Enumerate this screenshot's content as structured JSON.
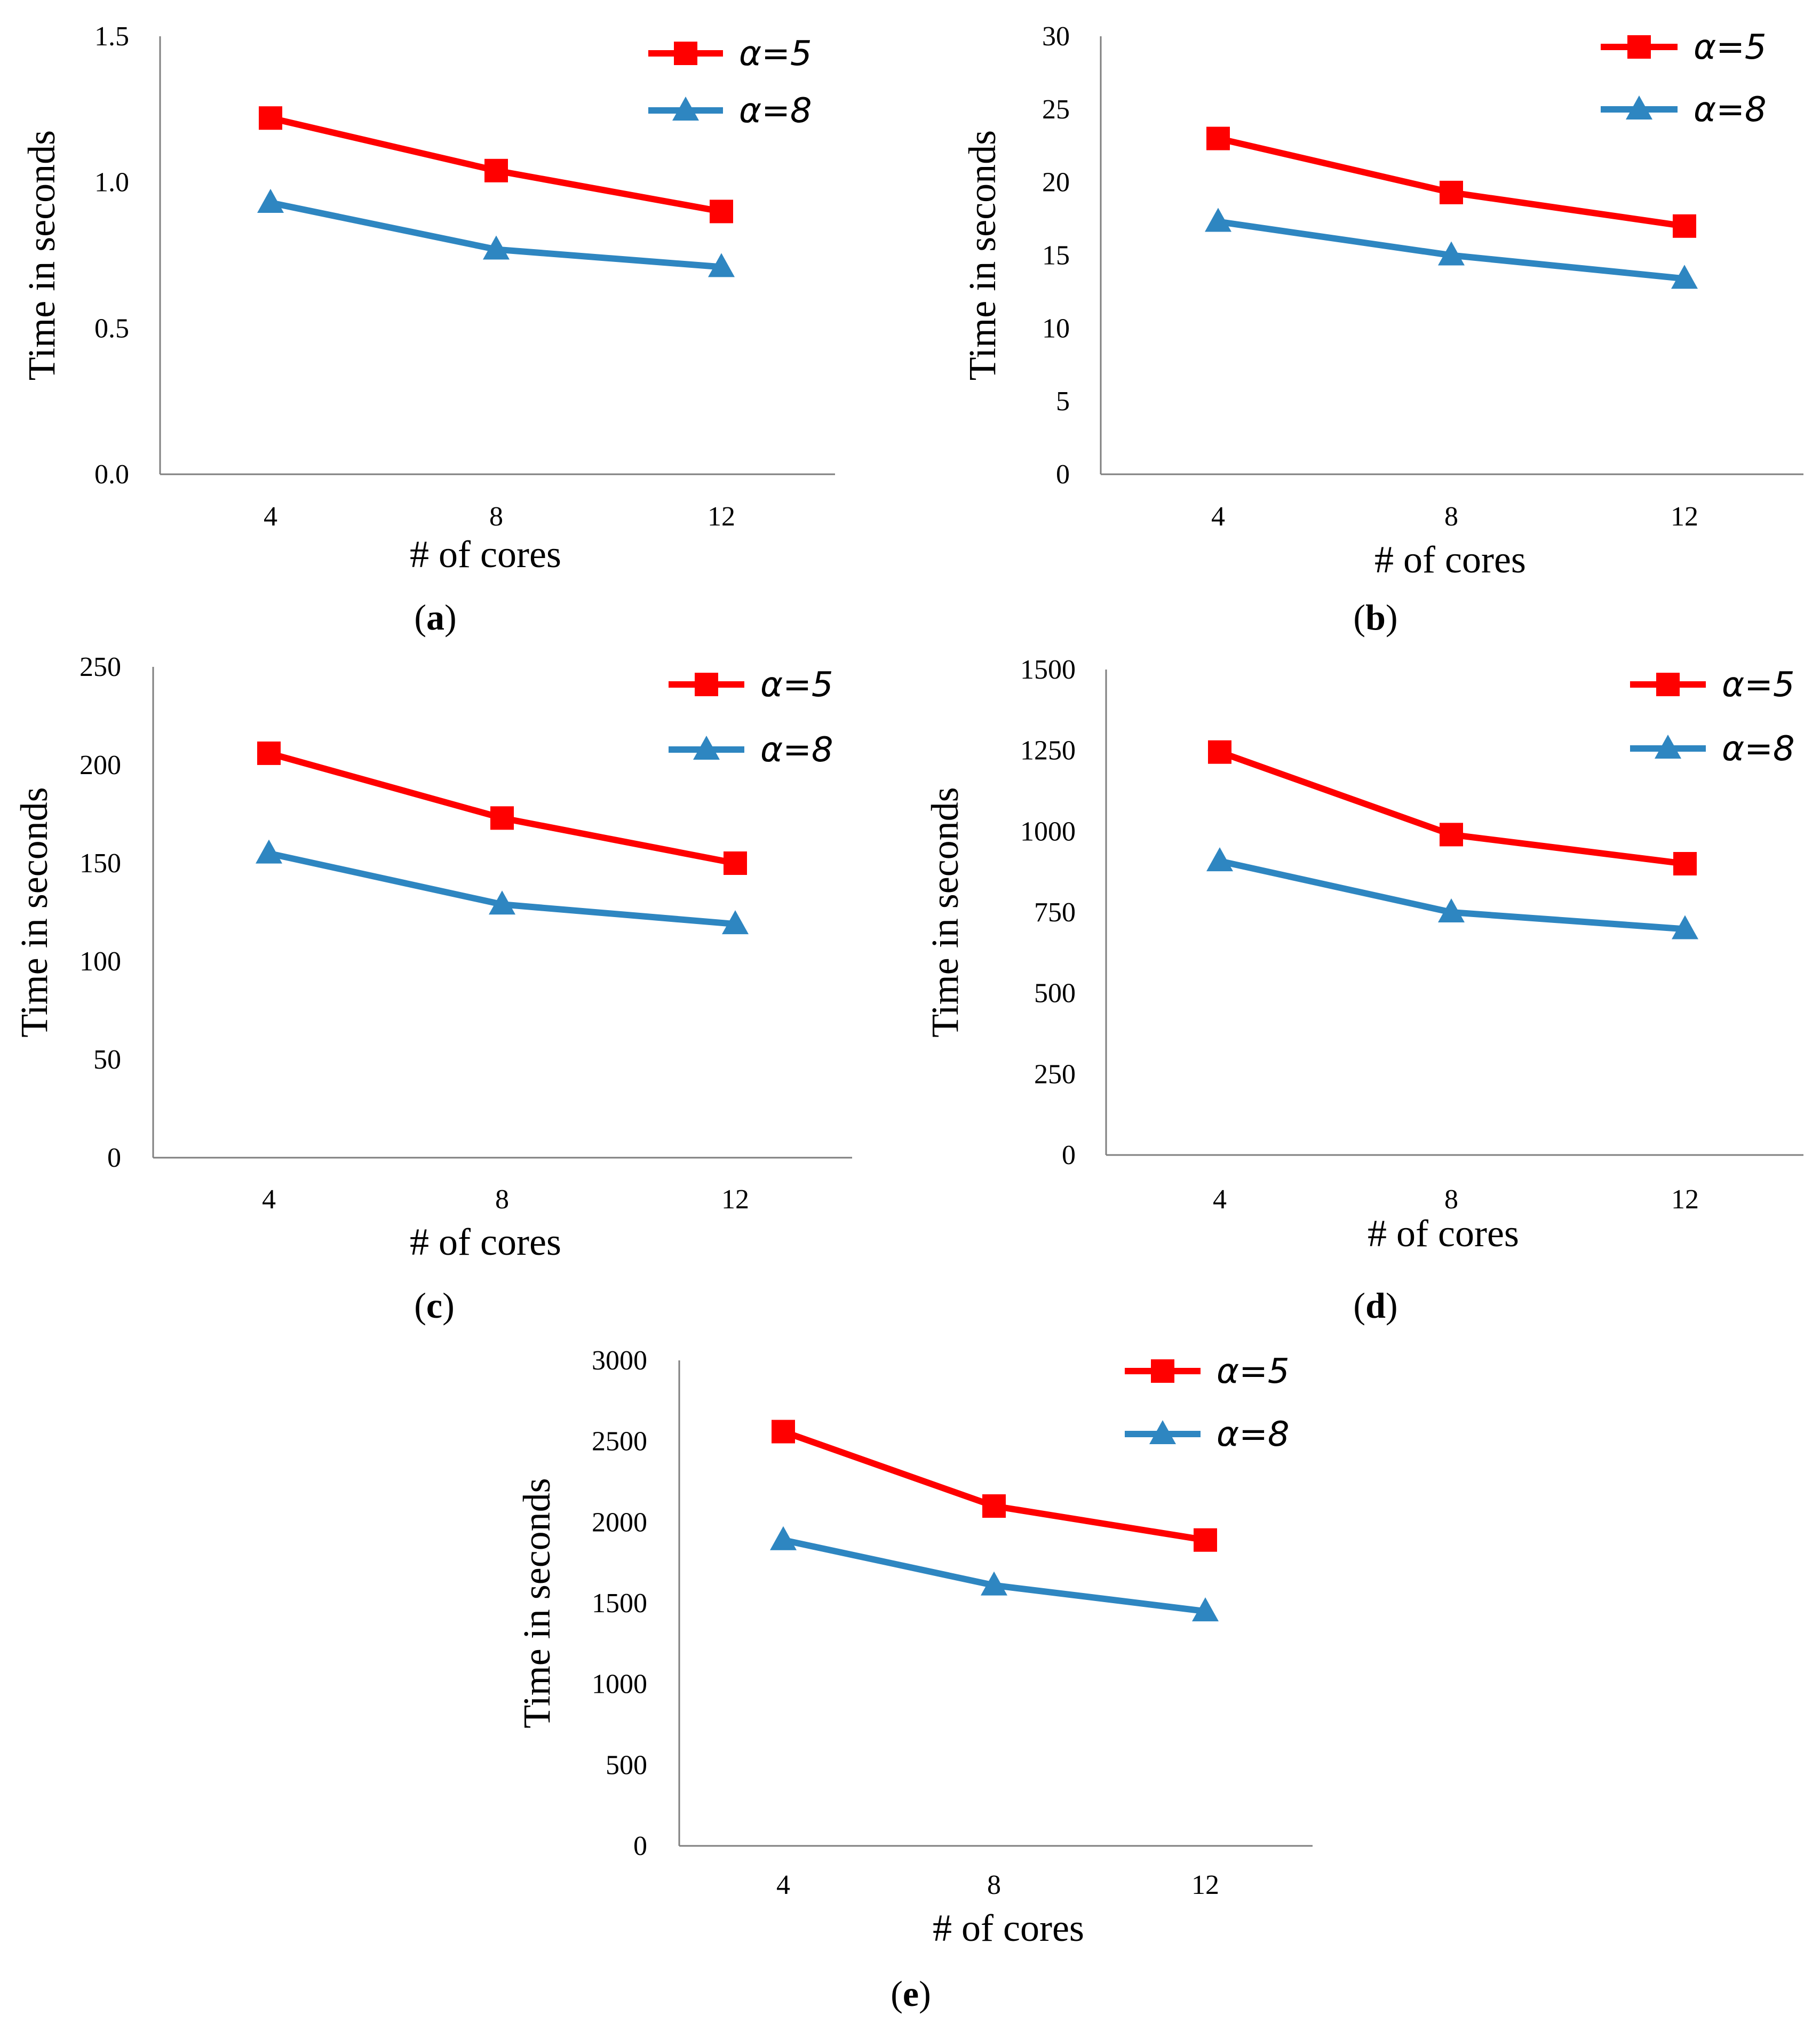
{
  "series_styles": {
    "a5": {
      "name": "α=5",
      "color": "#ff0000",
      "marker": "square"
    },
    "a8": {
      "name": "α=8",
      "color": "#2e86c1",
      "marker": "triangle"
    }
  },
  "chart_data": [
    {
      "type": "line",
      "panel_label": "a",
      "categories": [
        "4",
        "8",
        "12"
      ],
      "x": [
        4,
        8,
        12
      ],
      "series": [
        {
          "key": "a5",
          "name": "α=5",
          "values": [
            1.22,
            1.04,
            0.9
          ]
        },
        {
          "key": "a8",
          "name": "α=8",
          "values": [
            0.93,
            0.77,
            0.71
          ]
        }
      ],
      "xlabel": "# of cores",
      "ylabel": "Time in seconds",
      "ylim": [
        0,
        1.5
      ],
      "yticks": [
        "0.0",
        "0.5",
        "1.0",
        "1.5"
      ],
      "legend": "top-right",
      "grid": false
    },
    {
      "type": "line",
      "panel_label": "b",
      "categories": [
        "4",
        "8",
        "12"
      ],
      "x": [
        4,
        8,
        12
      ],
      "series": [
        {
          "key": "a5",
          "name": "α=5",
          "values": [
            23,
            19.3,
            17
          ]
        },
        {
          "key": "a8",
          "name": "α=8",
          "values": [
            17.3,
            15,
            13.4
          ]
        }
      ],
      "xlabel": "# of cores",
      "ylabel": "Time in seconds",
      "ylim": [
        0,
        30
      ],
      "yticks": [
        "0",
        "5",
        "10",
        "15",
        "20",
        "25",
        "30"
      ],
      "legend": "top-right",
      "grid": false
    },
    {
      "type": "line",
      "panel_label": "c",
      "categories": [
        "4",
        "8",
        "12"
      ],
      "x": [
        4,
        8,
        12
      ],
      "series": [
        {
          "key": "a5",
          "name": "α=5",
          "values": [
            206,
            173,
            150
          ]
        },
        {
          "key": "a8",
          "name": "α=8",
          "values": [
            155,
            129,
            119
          ]
        }
      ],
      "xlabel": "# of cores",
      "ylabel": "Time in seconds",
      "ylim": [
        0,
        250
      ],
      "yticks": [
        "0",
        "50",
        "100",
        "150",
        "200",
        "250"
      ],
      "legend": "top-right",
      "grid": false
    },
    {
      "type": "line",
      "panel_label": "d",
      "categories": [
        "4",
        "8",
        "12"
      ],
      "x": [
        4,
        8,
        12
      ],
      "series": [
        {
          "key": "a5",
          "name": "α=5",
          "values": [
            1245,
            990,
            900
          ]
        },
        {
          "key": "a8",
          "name": "α=8",
          "values": [
            908,
            750,
            698
          ]
        }
      ],
      "xlabel": "# of cores",
      "ylabel": "Time in seconds",
      "ylim": [
        0,
        1500
      ],
      "yticks": [
        "0",
        "250",
        "500",
        "750",
        "1000",
        "1250",
        "1500"
      ],
      "legend": "top-right",
      "grid": false
    },
    {
      "type": "line",
      "panel_label": "e",
      "categories": [
        "4",
        "8",
        "12"
      ],
      "x": [
        4,
        8,
        12
      ],
      "series": [
        {
          "key": "a5",
          "name": "α=5",
          "values": [
            2560,
            2100,
            1890
          ]
        },
        {
          "key": "a8",
          "name": "α=8",
          "values": [
            1890,
            1610,
            1450
          ]
        }
      ],
      "xlabel": "# of cores",
      "ylabel": "Time in seconds",
      "ylim": [
        0,
        3000
      ],
      "yticks": [
        "0",
        "500",
        "1000",
        "1500",
        "2000",
        "2500",
        "3000"
      ],
      "legend": "top-right",
      "grid": false
    }
  ]
}
